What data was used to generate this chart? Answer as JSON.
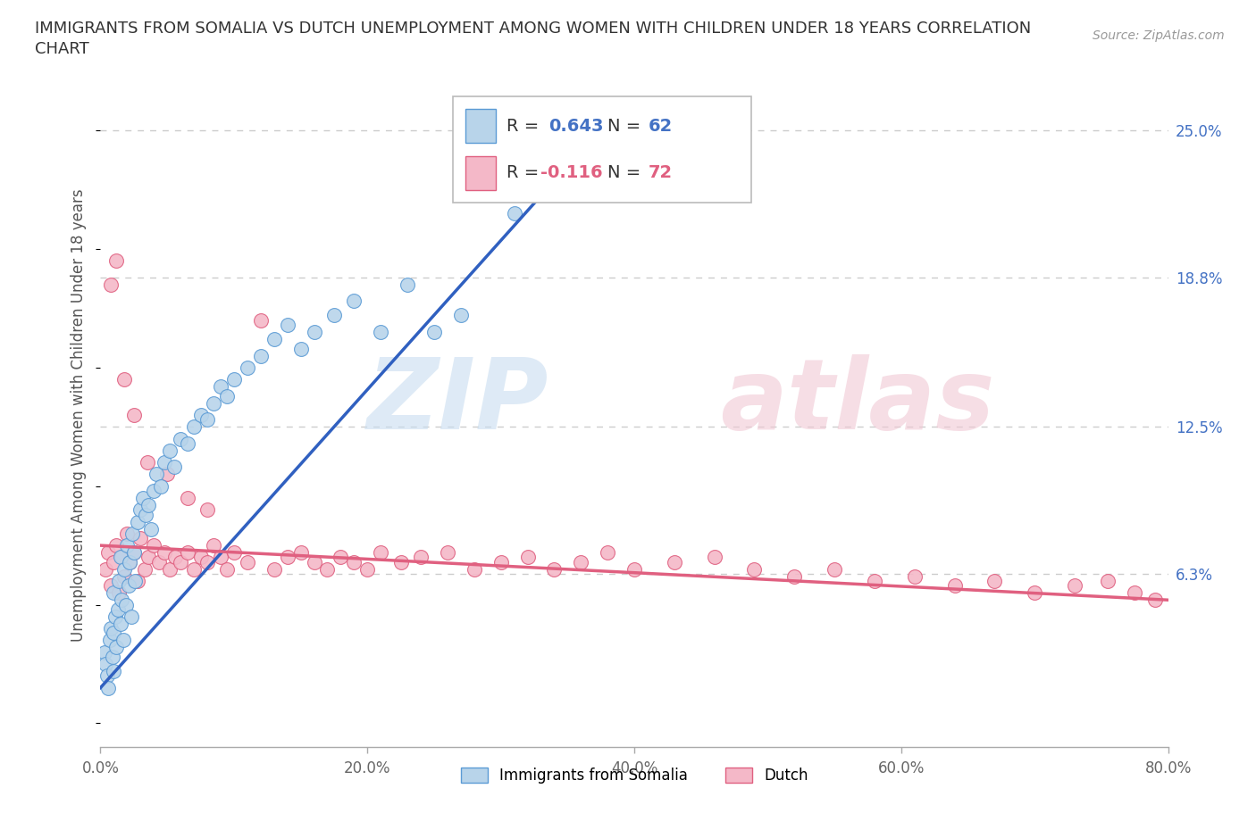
{
  "title_line1": "IMMIGRANTS FROM SOMALIA VS DUTCH UNEMPLOYMENT AMONG WOMEN WITH CHILDREN UNDER 18 YEARS CORRELATION",
  "title_line2": "CHART",
  "source": "Source: ZipAtlas.com",
  "ylabel": "Unemployment Among Women with Children Under 18 years",
  "xlim": [
    0.0,
    0.8
  ],
  "ylim": [
    -0.01,
    0.27
  ],
  "xticks": [
    0.0,
    0.2,
    0.4,
    0.6,
    0.8
  ],
  "xticklabels": [
    "0.0%",
    "20.0%",
    "40.0%",
    "60.0%",
    "80.0%"
  ],
  "yticks_right": [
    0.063,
    0.125,
    0.188,
    0.25
  ],
  "yticks_right_labels": [
    "6.3%",
    "12.5%",
    "18.8%",
    "25.0%"
  ],
  "R_somalia": 0.643,
  "N_somalia": 62,
  "R_dutch": -0.116,
  "N_dutch": 72,
  "color_somalia_fill": "#b8d4ea",
  "color_somalia_edge": "#5b9bd5",
  "color_dutch_fill": "#f4b8c8",
  "color_dutch_edge": "#e06080",
  "color_somalia_line": "#3060c0",
  "color_dutch_line": "#e06080",
  "legend_label_somalia": "Immigrants from Somalia",
  "legend_label_dutch": "Dutch",
  "somalia_x": [
    0.003,
    0.004,
    0.005,
    0.006,
    0.007,
    0.008,
    0.009,
    0.01,
    0.01,
    0.01,
    0.011,
    0.012,
    0.013,
    0.014,
    0.015,
    0.015,
    0.016,
    0.017,
    0.018,
    0.019,
    0.02,
    0.021,
    0.022,
    0.023,
    0.024,
    0.025,
    0.026,
    0.028,
    0.03,
    0.032,
    0.034,
    0.036,
    0.038,
    0.04,
    0.042,
    0.045,
    0.048,
    0.052,
    0.055,
    0.06,
    0.065,
    0.07,
    0.075,
    0.08,
    0.085,
    0.09,
    0.095,
    0.1,
    0.11,
    0.12,
    0.13,
    0.14,
    0.15,
    0.16,
    0.175,
    0.19,
    0.21,
    0.23,
    0.25,
    0.27,
    0.31,
    0.35
  ],
  "somalia_y": [
    0.03,
    0.025,
    0.02,
    0.015,
    0.035,
    0.04,
    0.028,
    0.022,
    0.038,
    0.055,
    0.045,
    0.032,
    0.048,
    0.06,
    0.042,
    0.07,
    0.052,
    0.035,
    0.065,
    0.05,
    0.075,
    0.058,
    0.068,
    0.045,
    0.08,
    0.072,
    0.06,
    0.085,
    0.09,
    0.095,
    0.088,
    0.092,
    0.082,
    0.098,
    0.105,
    0.1,
    0.11,
    0.115,
    0.108,
    0.12,
    0.118,
    0.125,
    0.13,
    0.128,
    0.135,
    0.142,
    0.138,
    0.145,
    0.15,
    0.155,
    0.162,
    0.168,
    0.158,
    0.165,
    0.172,
    0.178,
    0.165,
    0.185,
    0.165,
    0.172,
    0.215,
    0.23
  ],
  "dutch_x": [
    0.004,
    0.006,
    0.008,
    0.01,
    0.012,
    0.014,
    0.016,
    0.018,
    0.02,
    0.022,
    0.025,
    0.028,
    0.03,
    0.033,
    0.036,
    0.04,
    0.044,
    0.048,
    0.052,
    0.056,
    0.06,
    0.065,
    0.07,
    0.075,
    0.08,
    0.085,
    0.09,
    0.095,
    0.1,
    0.11,
    0.12,
    0.13,
    0.14,
    0.15,
    0.16,
    0.17,
    0.18,
    0.19,
    0.2,
    0.21,
    0.225,
    0.24,
    0.26,
    0.28,
    0.3,
    0.32,
    0.34,
    0.36,
    0.38,
    0.4,
    0.43,
    0.46,
    0.49,
    0.52,
    0.55,
    0.58,
    0.61,
    0.64,
    0.67,
    0.7,
    0.73,
    0.755,
    0.775,
    0.79,
    0.008,
    0.012,
    0.018,
    0.025,
    0.035,
    0.05,
    0.065,
    0.08
  ],
  "dutch_y": [
    0.065,
    0.072,
    0.058,
    0.068,
    0.075,
    0.055,
    0.07,
    0.062,
    0.08,
    0.068,
    0.072,
    0.06,
    0.078,
    0.065,
    0.07,
    0.075,
    0.068,
    0.072,
    0.065,
    0.07,
    0.068,
    0.072,
    0.065,
    0.07,
    0.068,
    0.075,
    0.07,
    0.065,
    0.072,
    0.068,
    0.17,
    0.065,
    0.07,
    0.072,
    0.068,
    0.065,
    0.07,
    0.068,
    0.065,
    0.072,
    0.068,
    0.07,
    0.072,
    0.065,
    0.068,
    0.07,
    0.065,
    0.068,
    0.072,
    0.065,
    0.068,
    0.07,
    0.065,
    0.062,
    0.065,
    0.06,
    0.062,
    0.058,
    0.06,
    0.055,
    0.058,
    0.06,
    0.055,
    0.052,
    0.185,
    0.195,
    0.145,
    0.13,
    0.11,
    0.105,
    0.095,
    0.09
  ],
  "somalia_trend_x": [
    0.0,
    0.35
  ],
  "somalia_trend_y": [
    0.015,
    0.235
  ],
  "dutch_trend_x": [
    0.0,
    0.8
  ],
  "dutch_trend_y": [
    0.075,
    0.052
  ]
}
